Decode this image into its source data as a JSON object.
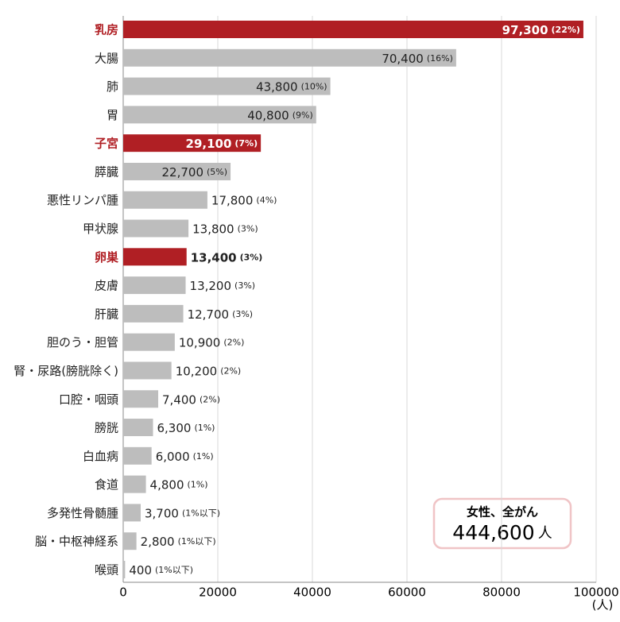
{
  "chart_data": {
    "type": "bar",
    "orientation": "horizontal",
    "categories": [
      "乳房",
      "大腸",
      "肺",
      "胃",
      "子宮",
      "膵臓",
      "悪性リンパ腫",
      "甲状腺",
      "卵巣",
      "皮膚",
      "肝臓",
      "胆のう・胆管",
      "腎・尿路(膀胱除く)",
      "口腔・咽頭",
      "膀胱",
      "白血病",
      "食道",
      "多発性骨髄腫",
      "脳・中枢神経系",
      "喉頭"
    ],
    "values": [
      97300,
      70400,
      43800,
      40800,
      29100,
      22700,
      17800,
      13800,
      13400,
      13200,
      12700,
      10900,
      10200,
      7400,
      6300,
      6000,
      4800,
      3700,
      2800,
      400
    ],
    "value_labels": [
      "97,300",
      "70,400",
      "43,800",
      "40,800",
      "29,100",
      "22,700",
      "17,800",
      "13,800",
      "13,400",
      "13,200",
      "12,700",
      "10,900",
      "10,200",
      "7,400",
      "6,300",
      "6,000",
      "4,800",
      "3,700",
      "2,800",
      "400"
    ],
    "percent_labels": [
      "(22%)",
      "(16%)",
      "(10%)",
      "(9%)",
      "(7%)",
      "(5%)",
      "(4%)",
      "(3%)",
      "(3%)",
      "(3%)",
      "(3%)",
      "(2%)",
      "(2%)",
      "(2%)",
      "(1%)",
      "(1%)",
      "(1%)",
      "(1%以下)",
      "(1%以下)",
      "(1%以下)"
    ],
    "colors": [
      "#b01f24",
      "#bdbdbd",
      "#bdbdbd",
      "#bdbdbd",
      "#b01f24",
      "#bdbdbd",
      "#bdbdbd",
      "#bdbdbd",
      "#b01f24",
      "#bdbdbd",
      "#bdbdbd",
      "#bdbdbd",
      "#bdbdbd",
      "#bdbdbd",
      "#bdbdbd",
      "#bdbdbd",
      "#bdbdbd",
      "#bdbdbd",
      "#bdbdbd",
      "#bdbdbd"
    ],
    "category_colors": [
      "#b01f24",
      "#222222",
      "#222222",
      "#222222",
      "#b01f24",
      "#222222",
      "#222222",
      "#222222",
      "#b01f24",
      "#222222",
      "#222222",
      "#222222",
      "#222222",
      "#222222",
      "#222222",
      "#222222",
      "#222222",
      "#222222",
      "#222222",
      "#222222"
    ],
    "xlim": [
      0,
      100000
    ],
    "xticks": [
      0,
      20000,
      40000,
      60000,
      80000,
      100000
    ],
    "x_unit": "(人)",
    "grid": true,
    "annotation": {
      "title": "女性、全がん",
      "total": "444,600",
      "unit": "人"
    }
  }
}
